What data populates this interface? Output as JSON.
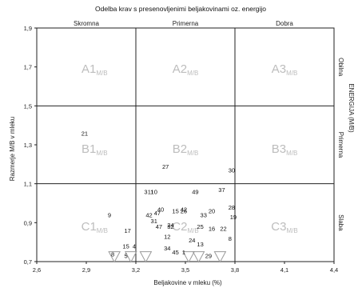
{
  "chart_data": {
    "type": "scatter",
    "title": "Odelba krav s presenovljenimi beljakovinami oz. energijo",
    "xlabel": "Beljakovine v mleku (%)",
    "ylabel": "Razmerje M/B v mleku",
    "xlim": [
      2.6,
      4.4
    ],
    "ylim": [
      0.7,
      1.9
    ],
    "xticks": [
      "2,6",
      "2,9",
      "3,2",
      "3,5",
      "3,8",
      "4,1",
      "4,4"
    ],
    "yticks": [
      "1,9",
      "1,7",
      "1,5",
      "1,3",
      "1,1",
      "0,9",
      "0,7"
    ],
    "column_boundaries": [
      3.2,
      3.8
    ],
    "row_boundaries": [
      1.1,
      1.5
    ],
    "column_labels": [
      "Skromna",
      "Primerna",
      "Dobra"
    ],
    "right_axis_title": "ENERGIJA (M/B)",
    "row_labels": [
      "Obilna",
      "Primerna",
      "Slaba"
    ],
    "grid": false,
    "zones": [
      {
        "label": "A1",
        "sub": "M/B",
        "x": 2.95,
        "y": 1.69
      },
      {
        "label": "A2",
        "sub": "M/B",
        "x": 3.5,
        "y": 1.69
      },
      {
        "label": "A3",
        "sub": "M/B",
        "x": 4.1,
        "y": 1.69
      },
      {
        "label": "B1",
        "sub": "M/B",
        "x": 2.95,
        "y": 1.28
      },
      {
        "label": "B2",
        "sub": "M/B",
        "x": 3.5,
        "y": 1.28
      },
      {
        "label": "B3",
        "sub": "M/B",
        "x": 4.1,
        "y": 1.28
      },
      {
        "label": "C1",
        "sub": "M/B",
        "x": 2.95,
        "y": 0.88
      },
      {
        "label": "C2",
        "sub": "M/B",
        "x": 3.5,
        "y": 0.88
      },
      {
        "label": "C3",
        "sub": "M/B",
        "x": 4.1,
        "y": 0.88
      }
    ],
    "points": [
      {
        "label": "21",
        "x": 2.89,
        "y": 1.36
      },
      {
        "label": "9",
        "x": 3.04,
        "y": 0.94
      },
      {
        "label": "17",
        "x": 3.15,
        "y": 0.86
      },
      {
        "label": "27",
        "x": 3.38,
        "y": 1.19
      },
      {
        "label": "30",
        "x": 3.78,
        "y": 1.17
      },
      {
        "label": "11",
        "x": 3.29,
        "y": 1.06
      },
      {
        "label": "3",
        "x": 3.26,
        "y": 1.06
      },
      {
        "label": "10",
        "x": 3.31,
        "y": 1.06
      },
      {
        "label": "49",
        "x": 3.56,
        "y": 1.06
      },
      {
        "label": "37",
        "x": 3.72,
        "y": 1.07
      },
      {
        "label": "40",
        "x": 3.35,
        "y": 0.97
      },
      {
        "label": "42",
        "x": 3.49,
        "y": 0.97
      },
      {
        "label": "26",
        "x": 3.49,
        "y": 0.96
      },
      {
        "label": "15",
        "x": 3.44,
        "y": 0.96
      },
      {
        "label": "47",
        "x": 3.33,
        "y": 0.95
      },
      {
        "label": "28",
        "x": 3.78,
        "y": 0.98
      },
      {
        "label": "20",
        "x": 3.66,
        "y": 0.96
      },
      {
        "label": "33",
        "x": 3.61,
        "y": 0.94
      },
      {
        "label": "19",
        "x": 3.79,
        "y": 0.93
      },
      {
        "label": "42",
        "x": 3.28,
        "y": 0.94
      },
      {
        "label": "31",
        "x": 3.31,
        "y": 0.91
      },
      {
        "label": "32",
        "x": 3.41,
        "y": 0.88
      },
      {
        "label": "47",
        "x": 3.34,
        "y": 0.88
      },
      {
        "label": "24",
        "x": 3.41,
        "y": 0.89
      },
      {
        "label": "25",
        "x": 3.59,
        "y": 0.88
      },
      {
        "label": "16",
        "x": 3.66,
        "y": 0.87
      },
      {
        "label": "22",
        "x": 3.73,
        "y": 0.87
      },
      {
        "label": "12",
        "x": 3.39,
        "y": 0.83
      },
      {
        "label": "24",
        "x": 3.54,
        "y": 0.81
      },
      {
        "label": "13",
        "x": 3.59,
        "y": 0.79
      },
      {
        "label": "8",
        "x": 3.77,
        "y": 0.82
      },
      {
        "label": "15",
        "x": 3.14,
        "y": 0.78
      },
      {
        "label": "4",
        "x": 3.19,
        "y": 0.78
      },
      {
        "label": "34",
        "x": 3.39,
        "y": 0.77
      },
      {
        "label": "45",
        "x": 3.44,
        "y": 0.75
      },
      {
        "label": "1",
        "x": 3.49,
        "y": 0.75
      },
      {
        "label": "8",
        "x": 3.06,
        "y": 0.74
      },
      {
        "label": "5",
        "x": 3.14,
        "y": 0.73
      },
      {
        "label": "29",
        "x": 3.64,
        "y": 0.73
      }
    ],
    "markers": [
      {
        "x": 3.07,
        "y": 0.71
      },
      {
        "x": 3.17,
        "y": 0.71
      },
      {
        "x": 3.26,
        "y": 0.71
      },
      {
        "x": 3.52,
        "y": 0.71
      },
      {
        "x": 3.58,
        "y": 0.71
      },
      {
        "x": 3.71,
        "y": 0.71
      }
    ]
  }
}
